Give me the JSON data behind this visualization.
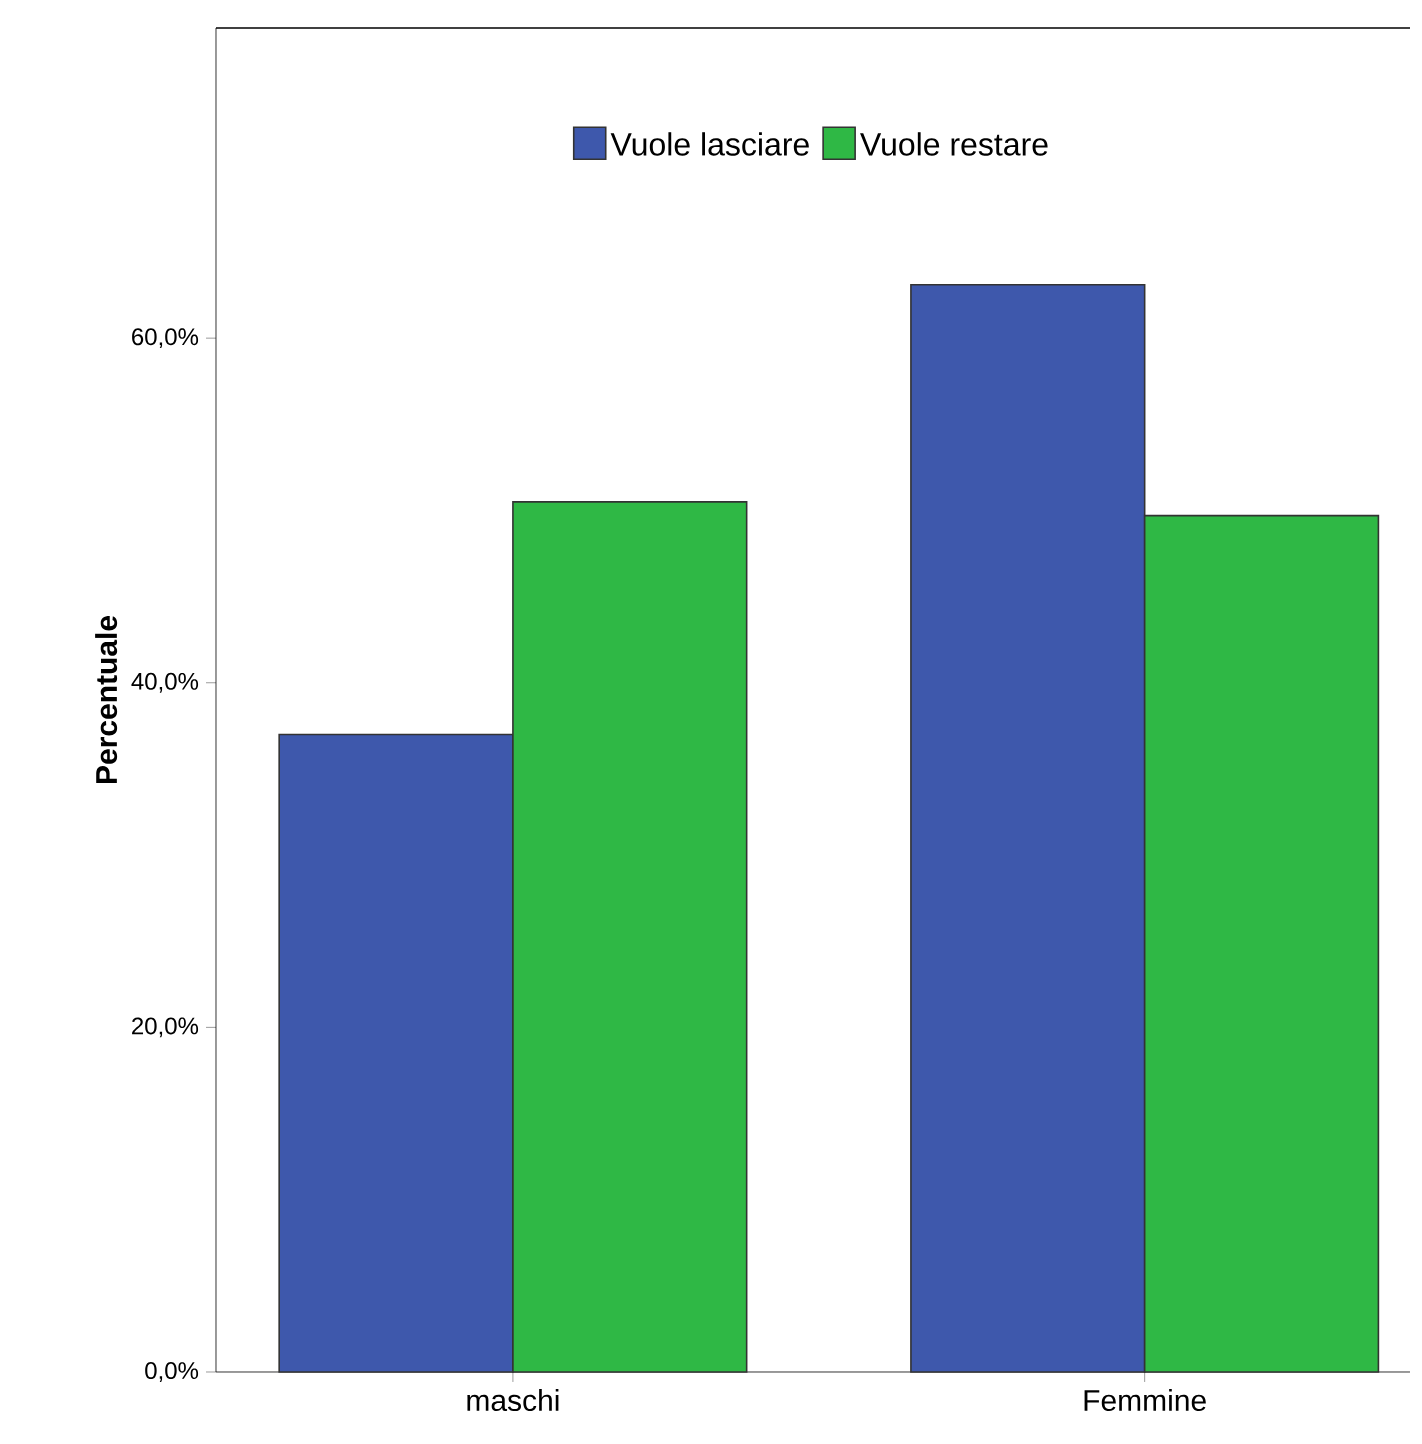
{
  "chart_data": {
    "type": "bar",
    "ylabel": "Percentuale",
    "categories": [
      "maschi",
      "Femmine"
    ],
    "series": [
      {
        "name": "Vuole lasciare",
        "color": "#3e58ac",
        "values": [
          37.0,
          63.1
        ]
      },
      {
        "name": "Vuole restare",
        "color": "#2fb845",
        "values": [
          50.5,
          49.7
        ]
      }
    ],
    "ylim": [
      0,
      78
    ],
    "yticks": [
      {
        "value": 0,
        "label": "0,0%"
      },
      {
        "value": 20,
        "label": "20,0%"
      },
      {
        "value": 40,
        "label": "40,0%"
      },
      {
        "value": 60,
        "label": "60,0%"
      }
    ],
    "legend": "top",
    "grid": false
  }
}
